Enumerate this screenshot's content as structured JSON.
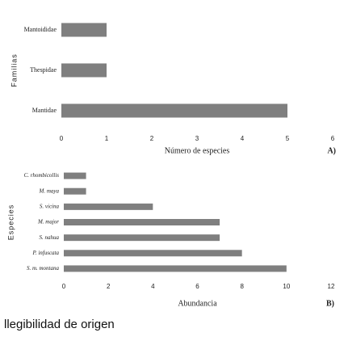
{
  "chart_data": [
    {
      "type": "bar",
      "orientation": "horizontal",
      "x_label": "Número de especies",
      "y_label": "Familias",
      "panel_label": "A)",
      "categories": [
        "Mantoididae",
        "Thespidae",
        "Mantidae"
      ],
      "values": [
        1,
        1,
        5
      ],
      "color": "#7f7f7f",
      "xlim": [
        0,
        6
      ],
      "xticks": [
        0,
        1,
        2,
        3,
        4,
        5,
        6
      ],
      "category_style": "normal"
    },
    {
      "type": "bar",
      "orientation": "horizontal",
      "x_label": "Abundancia",
      "y_label": "Especies",
      "panel_label": "B)",
      "categories": [
        "C. rhombicollis",
        "M. maya",
        "S. vicina",
        "M. major",
        "S. nahua",
        "P. infuscata",
        "S. m. montana"
      ],
      "values": [
        1,
        1,
        4,
        7,
        7,
        8,
        10
      ],
      "color": "#7f7f7f",
      "xlim": [
        0,
        12
      ],
      "xticks": [
        0,
        2,
        4,
        6,
        8,
        10,
        12
      ],
      "category_style": "italic"
    }
  ],
  "caption": "llegibilidad de origen"
}
